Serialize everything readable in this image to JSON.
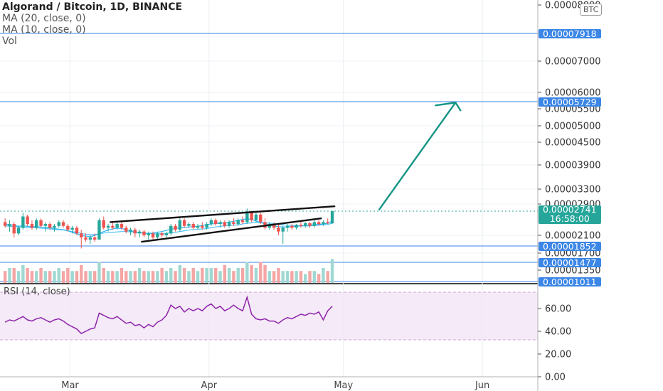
{
  "header": {
    "title": "Algorand / Bitcoin, 1D, BINANCE",
    "indicators": [
      "MA (20, close, 0)",
      "MA (10, close, 0)",
      "Vol"
    ],
    "rsi_title": "RSI (14, close)",
    "currency_badge": "BTC"
  },
  "price_axis": {
    "ticks": [
      "0.00008000",
      "0.00007000",
      "0.00006000",
      "0.00005500",
      "0.00005000",
      "0.00004500",
      "0.00003900",
      "0.00003300",
      "0.00002900",
      "0.00002100",
      "0.00001700",
      "0.00001350"
    ],
    "levels": [
      {
        "label": "0.00007918",
        "value": 7.918e-05
      },
      {
        "label": "0.00005729",
        "value": 5.729e-05
      },
      {
        "label": "0.00001852",
        "value": 1.852e-05
      },
      {
        "label": "0.00001477",
        "value": 1.477e-05
      },
      {
        "label": "0.00001011",
        "value": 1.011e-05
      }
    ],
    "current": {
      "price": "0.00002741",
      "countdown": "16:58:00"
    }
  },
  "rsi_axis": {
    "ticks": [
      "60.00",
      "40.00",
      "20.00",
      "0.00"
    ]
  },
  "time_axis": {
    "labels": [
      "Mar",
      "Apr",
      "May",
      "Jun"
    ]
  },
  "colors": {
    "up": "#26a69a",
    "down": "#ef5350",
    "ma": "#4fc3f7",
    "arrow": "#139485",
    "rsi": "#8e24aa",
    "rsi_band": "#f3e5f5",
    "level": "#3b86e6"
  },
  "chart_data": {
    "type": "candlestick",
    "title": "Algorand / Bitcoin, 1D, BINANCE",
    "x_start": "2020-02-15",
    "x_range": [
      "2020-02-15",
      "2020-06-12"
    ],
    "y_unit": "BTC",
    "candles": [
      [
        2.45,
        2.55,
        2.3,
        2.35
      ],
      [
        2.35,
        2.5,
        2.2,
        2.4
      ],
      [
        2.4,
        2.45,
        2.05,
        2.15
      ],
      [
        2.15,
        2.35,
        2.1,
        2.3
      ],
      [
        2.3,
        2.7,
        2.25,
        2.6
      ],
      [
        2.6,
        2.65,
        2.35,
        2.4
      ],
      [
        2.4,
        2.5,
        2.25,
        2.3
      ],
      [
        2.3,
        2.55,
        2.25,
        2.5
      ],
      [
        2.5,
        2.55,
        2.3,
        2.35
      ],
      [
        2.35,
        2.45,
        2.2,
        2.4
      ],
      [
        2.4,
        2.45,
        2.25,
        2.3
      ],
      [
        2.3,
        2.4,
        2.2,
        2.35
      ],
      [
        2.35,
        2.5,
        2.3,
        2.45
      ],
      [
        2.45,
        2.5,
        2.3,
        2.35
      ],
      [
        2.35,
        2.4,
        2.2,
        2.25
      ],
      [
        2.25,
        2.35,
        2.15,
        2.3
      ],
      [
        2.3,
        2.35,
        2.1,
        2.15
      ],
      [
        2.15,
        2.25,
        1.8,
        2.05
      ],
      [
        2.05,
        2.15,
        1.95,
        2.0
      ],
      [
        2.0,
        2.1,
        1.9,
        2.05
      ],
      [
        2.05,
        2.15,
        1.95,
        2.0
      ],
      [
        2.0,
        2.55,
        2.0,
        2.5
      ],
      [
        2.5,
        2.6,
        2.25,
        2.3
      ],
      [
        2.3,
        2.4,
        2.2,
        2.35
      ],
      [
        2.35,
        2.45,
        2.25,
        2.3
      ],
      [
        2.3,
        2.45,
        2.25,
        2.4
      ],
      [
        2.4,
        2.45,
        2.25,
        2.3
      ],
      [
        2.3,
        2.35,
        2.15,
        2.2
      ],
      [
        2.2,
        2.3,
        2.1,
        2.25
      ],
      [
        2.25,
        2.3,
        2.05,
        2.15
      ],
      [
        2.15,
        2.25,
        2.05,
        2.2
      ],
      [
        2.2,
        2.25,
        2.05,
        2.1
      ],
      [
        2.1,
        2.2,
        2.0,
        2.15
      ],
      [
        2.15,
        2.2,
        2.0,
        2.05
      ],
      [
        2.05,
        2.2,
        2.0,
        2.15
      ],
      [
        2.15,
        2.2,
        2.05,
        2.1
      ],
      [
        2.1,
        2.2,
        2.05,
        2.15
      ],
      [
        2.15,
        2.4,
        2.1,
        2.35
      ],
      [
        2.35,
        2.4,
        2.2,
        2.25
      ],
      [
        2.25,
        2.55,
        2.2,
        2.5
      ],
      [
        2.5,
        2.55,
        2.3,
        2.35
      ],
      [
        2.35,
        2.45,
        2.3,
        2.4
      ],
      [
        2.4,
        2.45,
        2.25,
        2.3
      ],
      [
        2.3,
        2.4,
        2.25,
        2.35
      ],
      [
        2.35,
        2.45,
        2.25,
        2.3
      ],
      [
        2.3,
        2.45,
        2.25,
        2.4
      ],
      [
        2.4,
        2.55,
        2.35,
        2.5
      ],
      [
        2.5,
        2.55,
        2.35,
        2.4
      ],
      [
        2.4,
        2.5,
        2.3,
        2.45
      ],
      [
        2.45,
        2.5,
        2.3,
        2.35
      ],
      [
        2.35,
        2.5,
        2.3,
        2.45
      ],
      [
        2.45,
        2.55,
        2.35,
        2.4
      ],
      [
        2.4,
        2.55,
        2.35,
        2.5
      ],
      [
        2.5,
        2.6,
        2.4,
        2.45
      ],
      [
        2.45,
        2.8,
        2.4,
        2.7
      ],
      [
        2.7,
        2.75,
        2.45,
        2.5
      ],
      [
        2.5,
        2.7,
        2.45,
        2.65
      ],
      [
        2.65,
        2.7,
        2.4,
        2.45
      ],
      [
        2.45,
        2.55,
        2.25,
        2.3
      ],
      [
        2.3,
        2.45,
        2.25,
        2.4
      ],
      [
        2.4,
        2.45,
        2.25,
        2.3
      ],
      [
        2.3,
        2.4,
        2.1,
        2.2
      ],
      [
        2.2,
        2.35,
        1.9,
        2.3
      ],
      [
        2.3,
        2.4,
        2.2,
        2.35
      ],
      [
        2.35,
        2.4,
        2.25,
        2.3
      ],
      [
        2.3,
        2.4,
        2.25,
        2.38
      ],
      [
        2.38,
        2.45,
        2.3,
        2.35
      ],
      [
        2.35,
        2.45,
        2.3,
        2.42
      ],
      [
        2.42,
        2.45,
        2.3,
        2.35
      ],
      [
        2.35,
        2.5,
        2.3,
        2.45
      ],
      [
        2.45,
        2.5,
        2.35,
        2.4
      ],
      [
        2.4,
        2.5,
        2.35,
        2.45
      ],
      [
        2.45,
        2.55,
        2.4,
        2.42
      ],
      [
        2.42,
        2.75,
        2.4,
        2.74
      ]
    ],
    "volumes": [
      4,
      5,
      5,
      4,
      6,
      5,
      4,
      4,
      5,
      4,
      4,
      4,
      5,
      4,
      5,
      4,
      4,
      6,
      4,
      4,
      4,
      7,
      5,
      4,
      4,
      4,
      5,
      4,
      4,
      4,
      5,
      4,
      4,
      4,
      4,
      5,
      4,
      5,
      4,
      6,
      5,
      4,
      5,
      4,
      5,
      5,
      5,
      5,
      4,
      6,
      5,
      4,
      5,
      5,
      7,
      6,
      5,
      7,
      6,
      4,
      4,
      5,
      4,
      4,
      4,
      4,
      4,
      3,
      4,
      4,
      3,
      5,
      4,
      8
    ],
    "ma20": [
      2.35,
      2.34,
      2.33,
      2.32,
      2.31,
      2.3,
      2.3,
      2.3,
      2.29,
      2.28,
      2.27,
      2.26,
      2.25,
      2.24,
      2.22,
      2.2,
      2.18,
      2.15,
      2.13,
      2.12,
      2.12,
      2.14,
      2.16,
      2.17,
      2.18,
      2.19,
      2.2,
      2.2,
      2.19,
      2.18,
      2.17,
      2.16,
      2.15,
      2.14,
      2.14,
      2.14,
      2.15,
      2.17,
      2.18,
      2.2,
      2.22,
      2.24,
      2.25,
      2.26,
      2.27,
      2.28,
      2.3,
      2.32,
      2.34,
      2.35,
      2.36,
      2.37,
      2.38,
      2.4,
      2.42,
      2.43,
      2.44,
      2.44,
      2.43,
      2.42,
      2.41,
      2.4,
      2.38,
      2.37,
      2.36,
      2.35,
      2.35,
      2.35,
      2.35,
      2.36,
      2.37,
      2.38,
      2.39,
      2.42
    ],
    "ma10": [
      2.4,
      2.38,
      2.36,
      2.34,
      2.35,
      2.34,
      2.33,
      2.33,
      2.32,
      2.31,
      2.3,
      2.28,
      2.26,
      2.25,
      2.22,
      2.18,
      2.14,
      2.1,
      2.08,
      2.07,
      2.1,
      2.15,
      2.2,
      2.24,
      2.27,
      2.29,
      2.28,
      2.25,
      2.22,
      2.19,
      2.17,
      2.16,
      2.15,
      2.16,
      2.18,
      2.2,
      2.23,
      2.26,
      2.28,
      2.3,
      2.31,
      2.32,
      2.33,
      2.34,
      2.36,
      2.38,
      2.4,
      2.41,
      2.42,
      2.43,
      2.45,
      2.47,
      2.5,
      2.52,
      2.54,
      2.52,
      2.48,
      2.44,
      2.4,
      2.37,
      2.35,
      2.33,
      2.32,
      2.32,
      2.33,
      2.34,
      2.35,
      2.36,
      2.37,
      2.38,
      2.39,
      2.4,
      2.42,
      2.48
    ],
    "rsi": [
      48,
      50,
      49,
      51,
      53,
      50,
      49,
      51,
      52,
      50,
      48,
      50,
      51,
      49,
      46,
      44,
      42,
      38,
      40,
      42,
      43,
      56,
      54,
      52,
      51,
      53,
      50,
      47,
      48,
      45,
      46,
      43,
      46,
      44,
      48,
      50,
      54,
      63,
      60,
      62,
      57,
      60,
      58,
      60,
      58,
      62,
      64,
      60,
      62,
      58,
      60,
      63,
      60,
      58,
      70,
      55,
      51,
      50,
      51,
      49,
      49,
      47,
      50,
      52,
      51,
      53,
      55,
      54,
      56,
      55,
      57,
      50,
      58,
      62
    ],
    "rsi_ylim": [
      0,
      80
    ],
    "drawings": {
      "channel_upper": {
        "from": [
          "2020-03-10",
          2.45e-05
        ],
        "to": [
          "2020-04-29",
          2.85e-05
        ]
      },
      "channel_lower": {
        "from": [
          "2020-03-17",
          1.95e-05
        ],
        "to": [
          "2020-04-26",
          2.55e-05
        ]
      },
      "target_arrow": {
        "from": [
          "2020-05-09",
          2.78e-05
        ],
        "to": [
          "2020-05-26",
          5.7e-05
        ]
      }
    }
  }
}
